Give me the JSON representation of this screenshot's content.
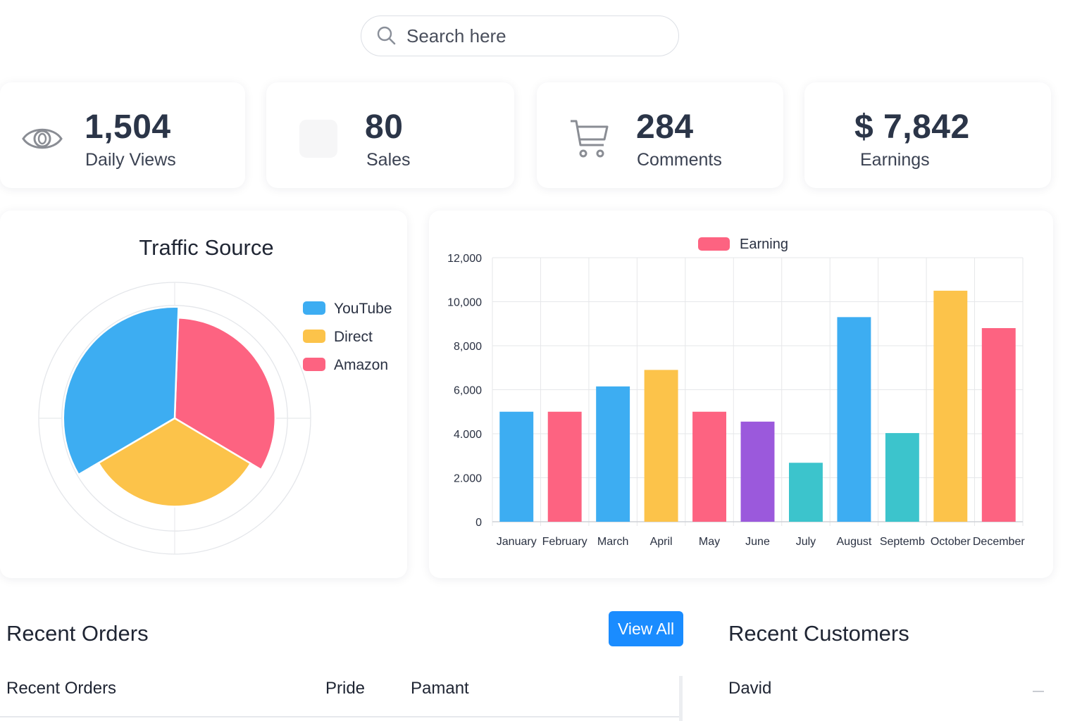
{
  "search": {
    "placeholder": "Search here",
    "icon": "search-icon"
  },
  "stats": [
    {
      "value": "1,504",
      "label": "Daily Views",
      "icon": "eye-icon"
    },
    {
      "value": "80",
      "label": "Sales",
      "icon": "blank-icon"
    },
    {
      "value": "284",
      "label": "Comments",
      "icon": "cart-icon"
    },
    {
      "value": "$ 7,842",
      "label": "Earnings",
      "icon": ""
    }
  ],
  "colors": {
    "blue": "#3dadf2",
    "yellow": "#fcc34a",
    "red": "#fd6381",
    "purple": "#9b59dc",
    "teal": "#3cc4cc",
    "button": "#1a8cff"
  },
  "chart_data": [
    {
      "type": "pie",
      "title": "Traffic Source",
      "legend": [
        "YouTube",
        "Direct",
        "Amazon"
      ],
      "values": [
        34,
        33,
        33
      ],
      "radii": [
        0.82,
        0.65,
        0.74
      ],
      "colors": [
        "#3dadf2",
        "#fcc34a",
        "#fd6381"
      ],
      "legend_position": "right"
    },
    {
      "type": "bar",
      "legend": [
        "Earning"
      ],
      "categories": [
        "January",
        "February",
        "March",
        "April",
        "May",
        "June",
        "July",
        "August",
        "Septemb",
        "October",
        "December"
      ],
      "values": [
        5000,
        5000,
        6150,
        6900,
        5000,
        4550,
        2680,
        9300,
        4030,
        10500,
        8800
      ],
      "colors": [
        "#3dadf2",
        "#fd6381",
        "#3dadf2",
        "#fcc34a",
        "#fd6381",
        "#9b59dc",
        "#3cc4cc",
        "#3dadf2",
        "#3cc4cc",
        "#fcc34a",
        "#fd6381"
      ],
      "ylim": [
        0,
        12000
      ],
      "yticks": [
        "0",
        "2.000",
        "4.000",
        "6,000",
        "8,000",
        "10,000",
        "12,000"
      ],
      "grid": true,
      "legend_position": "top"
    }
  ],
  "orders": {
    "title": "Recent Orders",
    "view_all": "View All",
    "headers": [
      "Recent Orders",
      "Pride",
      "Pamant"
    ]
  },
  "customers": {
    "title": "Recent Customers",
    "rows": [
      "David"
    ]
  }
}
